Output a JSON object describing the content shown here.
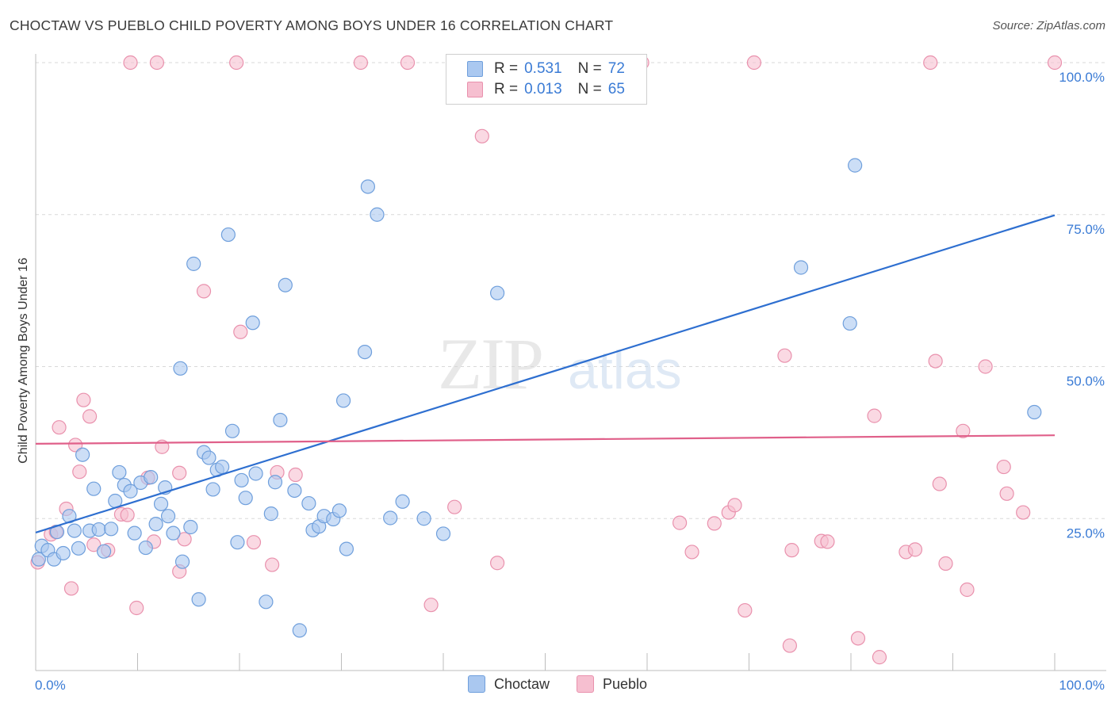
{
  "title": "CHOCTAW VS PUEBLO CHILD POVERTY AMONG BOYS UNDER 16 CORRELATION CHART",
  "source": "Source: ZipAtlas.com",
  "watermark": {
    "zip": "ZIP",
    "atlas": "atlas"
  },
  "legend": {
    "choctaw": {
      "r_label": "R =",
      "r_value": "0.531",
      "n_label": "N =",
      "n_value": "72"
    },
    "pueblo": {
      "r_label": "R =",
      "r_value": "0.013",
      "n_label": "N =",
      "n_value": "65"
    }
  },
  "bottom_legend": {
    "choctaw": "Choctaw",
    "pueblo": "Pueblo"
  },
  "colors": {
    "choctaw_fill": "#aac8f0",
    "choctaw_stroke": "#6f9fdc",
    "choctaw_line": "#2e6fd0",
    "pueblo_fill": "#f6bfd0",
    "pueblo_stroke": "#e991ad",
    "pueblo_line": "#e0608a",
    "tick_label": "#3a7bd5",
    "grid": "#d9d9d9"
  },
  "chart_data": {
    "type": "scatter",
    "title": "CHOCTAW VS PUEBLO CHILD POVERTY AMONG BOYS UNDER 16 CORRELATION CHART",
    "xlabel": "",
    "ylabel": "Child Poverty Among Boys Under 16",
    "xlim": [
      0,
      100
    ],
    "ylim": [
      0,
      100
    ],
    "x_tick_labels": [
      "0.0%",
      "100.0%"
    ],
    "y_ticks": [
      25,
      50,
      75,
      100
    ],
    "y_tick_labels": [
      "25.0%",
      "50.0%",
      "75.0%",
      "100.0%"
    ],
    "grid": true,
    "legend_placement": "top-center",
    "series": [
      {
        "name": "Choctaw",
        "r": 0.531,
        "n": 72,
        "trend": {
          "x": [
            0,
            100
          ],
          "y": [
            22.7,
            74.9
          ]
        },
        "points": [
          [
            0.3,
            18.3
          ],
          [
            0.6,
            20.5
          ],
          [
            1.2,
            19.8
          ],
          [
            1.8,
            18.3
          ],
          [
            2.1,
            22.8
          ],
          [
            2.7,
            19.3
          ],
          [
            3.3,
            25.4
          ],
          [
            3.8,
            23.0
          ],
          [
            4.2,
            20.1
          ],
          [
            4.6,
            35.5
          ],
          [
            5.3,
            23.0
          ],
          [
            5.7,
            29.9
          ],
          [
            6.2,
            23.2
          ],
          [
            6.7,
            19.6
          ],
          [
            7.4,
            23.3
          ],
          [
            7.8,
            27.9
          ],
          [
            8.2,
            32.6
          ],
          [
            8.7,
            30.5
          ],
          [
            9.3,
            29.5
          ],
          [
            9.7,
            22.6
          ],
          [
            10.3,
            30.9
          ],
          [
            10.8,
            20.2
          ],
          [
            11.3,
            31.8
          ],
          [
            11.8,
            24.1
          ],
          [
            12.3,
            27.4
          ],
          [
            12.7,
            30.1
          ],
          [
            13.0,
            25.4
          ],
          [
            13.5,
            22.6
          ],
          [
            14.2,
            49.7
          ],
          [
            14.4,
            17.9
          ],
          [
            15.2,
            23.6
          ],
          [
            15.5,
            66.9
          ],
          [
            16.0,
            11.7
          ],
          [
            16.5,
            35.9
          ],
          [
            17.0,
            35.0
          ],
          [
            17.4,
            29.8
          ],
          [
            17.8,
            33.0
          ],
          [
            18.3,
            33.5
          ],
          [
            18.9,
            71.7
          ],
          [
            19.3,
            39.4
          ],
          [
            19.8,
            21.1
          ],
          [
            20.2,
            31.3
          ],
          [
            20.6,
            28.4
          ],
          [
            21.3,
            57.2
          ],
          [
            21.6,
            32.4
          ],
          [
            22.6,
            11.3
          ],
          [
            23.1,
            25.8
          ],
          [
            23.5,
            31.0
          ],
          [
            24.0,
            41.2
          ],
          [
            24.5,
            63.4
          ],
          [
            25.4,
            29.6
          ],
          [
            25.9,
            6.6
          ],
          [
            26.8,
            27.5
          ],
          [
            27.2,
            23.1
          ],
          [
            27.8,
            23.7
          ],
          [
            28.3,
            25.4
          ],
          [
            29.2,
            24.9
          ],
          [
            29.8,
            26.3
          ],
          [
            30.2,
            44.4
          ],
          [
            30.5,
            20.0
          ],
          [
            32.3,
            52.4
          ],
          [
            32.6,
            79.6
          ],
          [
            33.5,
            75.0
          ],
          [
            34.8,
            25.1
          ],
          [
            36.0,
            27.8
          ],
          [
            38.1,
            25.0
          ],
          [
            45.3,
            62.1
          ],
          [
            75.1,
            66.3
          ],
          [
            79.9,
            57.1
          ],
          [
            80.4,
            83.1
          ],
          [
            98.0,
            42.5
          ],
          [
            40.0,
            22.5
          ]
        ]
      },
      {
        "name": "Pueblo",
        "r": 0.013,
        "n": 65,
        "trend": {
          "x": [
            0,
            100
          ],
          "y": [
            37.3,
            38.7
          ]
        },
        "points": [
          [
            0.2,
            17.8
          ],
          [
            1.5,
            22.4
          ],
          [
            2.0,
            22.8
          ],
          [
            2.3,
            40.0
          ],
          [
            3.0,
            26.6
          ],
          [
            3.5,
            13.5
          ],
          [
            3.9,
            37.1
          ],
          [
            4.3,
            32.7
          ],
          [
            4.7,
            44.5
          ],
          [
            5.3,
            41.8
          ],
          [
            5.7,
            20.7
          ],
          [
            7.1,
            19.8
          ],
          [
            8.4,
            25.7
          ],
          [
            9.0,
            25.6
          ],
          [
            9.3,
            100
          ],
          [
            9.9,
            10.3
          ],
          [
            11.0,
            31.7
          ],
          [
            11.6,
            21.2
          ],
          [
            11.9,
            100
          ],
          [
            12.4,
            36.8
          ],
          [
            14.1,
            32.5
          ],
          [
            14.1,
            16.3
          ],
          [
            14.6,
            21.6
          ],
          [
            16.5,
            62.4
          ],
          [
            19.7,
            100
          ],
          [
            20.1,
            55.7
          ],
          [
            21.4,
            21.1
          ],
          [
            23.2,
            17.4
          ],
          [
            23.7,
            32.6
          ],
          [
            25.5,
            32.2
          ],
          [
            31.9,
            100
          ],
          [
            36.5,
            100
          ],
          [
            38.8,
            10.8
          ],
          [
            41.1,
            26.9
          ],
          [
            43.8,
            87.9
          ],
          [
            45.3,
            17.7
          ],
          [
            59.5,
            100
          ],
          [
            63.2,
            24.3
          ],
          [
            64.4,
            19.5
          ],
          [
            66.6,
            24.2
          ],
          [
            68.0,
            26.0
          ],
          [
            68.6,
            27.2
          ],
          [
            69.6,
            9.9
          ],
          [
            70.5,
            100
          ],
          [
            73.5,
            51.8
          ],
          [
            74.0,
            4.1
          ],
          [
            77.1,
            21.3
          ],
          [
            77.7,
            21.2
          ],
          [
            80.7,
            5.3
          ],
          [
            82.3,
            41.9
          ],
          [
            82.8,
            2.2
          ],
          [
            85.4,
            19.5
          ],
          [
            86.3,
            19.9
          ],
          [
            87.8,
            100
          ],
          [
            88.3,
            50.9
          ],
          [
            88.7,
            30.7
          ],
          [
            89.3,
            17.6
          ],
          [
            91.0,
            39.4
          ],
          [
            91.4,
            13.3
          ],
          [
            93.2,
            50.0
          ],
          [
            95.0,
            33.5
          ],
          [
            95.3,
            29.1
          ],
          [
            96.9,
            26.0
          ],
          [
            100,
            100
          ],
          [
            74.2,
            19.8
          ]
        ]
      }
    ]
  }
}
